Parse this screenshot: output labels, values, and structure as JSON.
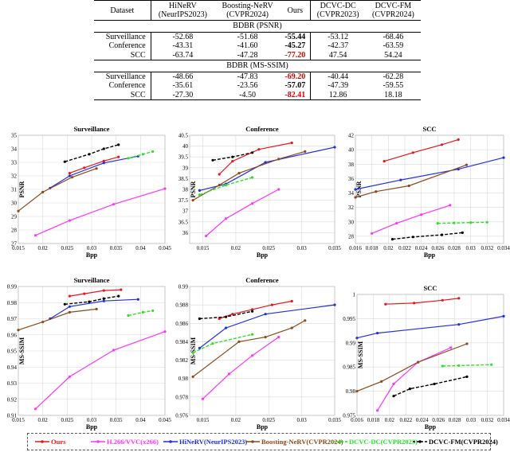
{
  "table": {
    "headers": [
      "Dataset",
      "HiNeRV\n(NeurIPS2023)",
      "Boosting-NeRV\n(CVPR2024)",
      "Ours",
      "DCVC-DC\n(CVPR2023)",
      "DCVC-FM\n(CVPR2024)"
    ],
    "sections": [
      {
        "title": "BDBR (PSNR)",
        "rows": [
          {
            "dataset": "Surveillance",
            "values": [
              "-52.68",
              "-51.68",
              "-55.44",
              "-53.12",
              "-68.46"
            ],
            "ours_style": "bold"
          },
          {
            "dataset": "Conference",
            "values": [
              "-43.31",
              "-41.60",
              "-45.27",
              "-42.37",
              "-63.59"
            ],
            "ours_style": "bold"
          },
          {
            "dataset": "SCC",
            "values": [
              "-63.74",
              "-47.28",
              "-77.20",
              "47.54",
              "54.24"
            ],
            "ours_style": "best"
          }
        ]
      },
      {
        "title": "BDBR (MS-SSIM)",
        "rows": [
          {
            "dataset": "Surveillance",
            "values": [
              "-48.66",
              "-47.83",
              "-69.20",
              "-40.44",
              "-62.28"
            ],
            "ours_style": "best"
          },
          {
            "dataset": "Conference",
            "values": [
              "-35.61",
              "-23.56",
              "-57.07",
              "-47.39",
              "-59.55"
            ],
            "ours_style": "bold"
          },
          {
            "dataset": "SCC",
            "values": [
              "-27.30",
              "-4.50",
              "-82.41",
              "12.86",
              "18.18"
            ],
            "ours_style": "best"
          }
        ]
      }
    ]
  },
  "legend": [
    {
      "name": "Ours",
      "color": "#e8161c",
      "dash": "solid",
      "marker": "dot"
    },
    {
      "name": "H.266/VVC(x266)",
      "color": "#ff33ff",
      "dash": "solid",
      "marker": "dot"
    },
    {
      "name": "HiNeRV(NeurIPS2023)",
      "color": "#1f2fe0",
      "dash": "solid",
      "marker": "dot"
    },
    {
      "name": "Boosting-NeRV(CVPR2024)",
      "color": "#8a4a1c",
      "dash": "solid",
      "marker": "dot"
    },
    {
      "name": "DCVC-DC(CVPR2023)",
      "color": "#2ee02e",
      "dash": "dashed",
      "marker": "dot"
    },
    {
      "name": "DCVC-FM(CVPR2024)",
      "color": "#000000",
      "dash": "dashed",
      "marker": "dot"
    }
  ],
  "chart_data": [
    {
      "type": "line",
      "title": "Surveillance",
      "xlabel": "Bpp",
      "ylabel": "PSNR",
      "xlim": [
        0.015,
        0.045
      ],
      "ylim": [
        27,
        35
      ],
      "xticks": [
        "0.015",
        "0.02",
        "0.025",
        "0.03",
        "0.035",
        "0.04",
        "0.045"
      ],
      "yticks": [
        "27",
        "28",
        "29",
        "30",
        "31",
        "32",
        "33",
        "34",
        "35"
      ],
      "series": [
        {
          "name": "Ours",
          "x": [
            0.0255,
            0.0285,
            0.0325,
            0.0355
          ],
          "y": [
            32.2,
            32.6,
            33.1,
            33.4
          ]
        },
        {
          "name": "H.266/VVC(x266)",
          "x": [
            0.0185,
            0.0255,
            0.0345,
            0.045
          ],
          "y": [
            27.6,
            28.7,
            29.9,
            31.05
          ]
        },
        {
          "name": "HiNeRV(NeurIPS2023)",
          "x": [
            0.0215,
            0.0255,
            0.0325,
            0.0395
          ],
          "y": [
            31.1,
            32.0,
            32.95,
            33.45
          ]
        },
        {
          "name": "Boosting-NeRV(CVPR2024)",
          "x": [
            0.015,
            0.02,
            0.026,
            0.031
          ],
          "y": [
            29.4,
            30.8,
            31.9,
            32.55
          ]
        },
        {
          "name": "DCVC-DC(CVPR2023)",
          "x": [
            0.0375,
            0.0405,
            0.0425
          ],
          "y": [
            33.3,
            33.6,
            33.8
          ]
        },
        {
          "name": "DCVC-FM(CVPR2024)",
          "x": [
            0.0245,
            0.0295,
            0.0325,
            0.0355
          ],
          "y": [
            33.05,
            33.6,
            34.0,
            34.3
          ]
        }
      ]
    },
    {
      "type": "line",
      "title": "Conference",
      "xlabel": "Bpp",
      "ylabel": "PSNR",
      "xlim": [
        0.013,
        0.035
      ],
      "ylim": [
        35.5,
        40.5
      ],
      "xticks": [
        "0.015",
        "0.02",
        "0.025",
        "0.03",
        "0.035"
      ],
      "yticks": [
        "36",
        "36.5",
        "37",
        "37.5",
        "38",
        "38.5",
        "39",
        "39.5",
        "40",
        "40.5"
      ],
      "series": [
        {
          "name": "Ours",
          "x": [
            0.0175,
            0.0195,
            0.0235,
            0.0285
          ],
          "y": [
            38.7,
            39.3,
            39.85,
            40.15
          ]
        },
        {
          "name": "H.266/VVC(x266)",
          "x": [
            0.0155,
            0.0185,
            0.0225,
            0.0265
          ],
          "y": [
            35.85,
            36.65,
            37.35,
            38.0
          ]
        },
        {
          "name": "HiNeRV(NeurIPS2023)",
          "x": [
            0.0145,
            0.0185,
            0.0245,
            0.035
          ],
          "y": [
            37.95,
            38.25,
            39.25,
            39.95
          ]
        },
        {
          "name": "Boosting-NeRV(CVPR2024)",
          "x": [
            0.0135,
            0.0175,
            0.0205,
            0.0265,
            0.0305
          ],
          "y": [
            37.5,
            38.2,
            38.75,
            39.4,
            39.75
          ]
        },
        {
          "name": "DCVC-DC(CVPR2023)",
          "x": [
            0.0145,
            0.0185,
            0.0225
          ],
          "y": [
            37.75,
            38.2,
            38.55
          ]
        },
        {
          "name": "DCVC-FM(CVPR2024)",
          "x": [
            0.0165,
            0.0195,
            0.0225
          ],
          "y": [
            39.35,
            39.5,
            39.7
          ]
        }
      ]
    },
    {
      "type": "line",
      "title": "SCC",
      "xlabel": "Bpp",
      "ylabel": "PSNR",
      "xlim": [
        0.016,
        0.034
      ],
      "ylim": [
        27,
        42
      ],
      "xticks": [
        "0.016",
        "0.018",
        "0.02",
        "0.022",
        "0.024",
        "0.026",
        "0.028",
        "0.03",
        "0.032",
        "0.034"
      ],
      "yticks": [
        "28",
        "30",
        "32",
        "34",
        "36",
        "38",
        "40",
        "42"
      ],
      "series": [
        {
          "name": "Ours",
          "x": [
            0.0195,
            0.023,
            0.0265,
            0.0285
          ],
          "y": [
            38.4,
            39.6,
            40.7,
            41.4
          ]
        },
        {
          "name": "H.266/VVC(x266)",
          "x": [
            0.018,
            0.021,
            0.024,
            0.0275
          ],
          "y": [
            28.4,
            29.8,
            31.0,
            32.3
          ]
        },
        {
          "name": "HiNeRV(NeurIPS2023)",
          "x": [
            0.016,
            0.0215,
            0.0285,
            0.034
          ],
          "y": [
            34.5,
            35.8,
            37.3,
            38.9
          ]
        },
        {
          "name": "Boosting-NeRV(CVPR2024)",
          "x": [
            0.016,
            0.0185,
            0.0225,
            0.0295
          ],
          "y": [
            33.4,
            34.2,
            35.0,
            37.9
          ]
        },
        {
          "name": "DCVC-DC(CVPR2023)",
          "x": [
            0.026,
            0.028,
            0.03,
            0.032
          ],
          "y": [
            29.8,
            29.85,
            29.9,
            29.95
          ]
        },
        {
          "name": "DCVC-FM(CVPR2024)",
          "x": [
            0.0205,
            0.023,
            0.0265,
            0.029
          ],
          "y": [
            27.6,
            27.9,
            28.2,
            28.5
          ]
        }
      ]
    },
    {
      "type": "line",
      "title": "Surveillance",
      "xlabel": "Bpp",
      "ylabel": "MS-SSIM",
      "xlim": [
        0.015,
        0.045
      ],
      "ylim": [
        0.91,
        0.99
      ],
      "xticks": [
        "0.015",
        "0.02",
        "0.025",
        "0.03",
        "0.035",
        "0.04",
        "0.045"
      ],
      "yticks": [
        "0.91",
        "0.92",
        "0.93",
        "0.94",
        "0.95",
        "0.96",
        "0.97",
        "0.98",
        "0.99"
      ],
      "series": [
        {
          "name": "Ours",
          "x": [
            0.0255,
            0.0285,
            0.0325,
            0.036
          ],
          "y": [
            0.984,
            0.9855,
            0.9875,
            0.988
          ]
        },
        {
          "name": "H.266/VVC(x266)",
          "x": [
            0.0185,
            0.0255,
            0.0345,
            0.045
          ],
          "y": [
            0.914,
            0.934,
            0.9505,
            0.962
          ]
        },
        {
          "name": "HiNeRV(NeurIPS2023)",
          "x": [
            0.0215,
            0.0255,
            0.0325,
            0.0395
          ],
          "y": [
            0.97,
            0.9775,
            0.981,
            0.982
          ]
        },
        {
          "name": "Boosting-NeRV(CVPR2024)",
          "x": [
            0.015,
            0.02,
            0.0255,
            0.031
          ],
          "y": [
            0.963,
            0.968,
            0.974,
            0.976
          ]
        },
        {
          "name": "DCVC-DC(CVPR2023)",
          "x": [
            0.0375,
            0.0405,
            0.0425
          ],
          "y": [
            0.972,
            0.974,
            0.975
          ]
        },
        {
          "name": "DCVC-FM(CVPR2024)",
          "x": [
            0.0245,
            0.0295,
            0.0325,
            0.0355
          ],
          "y": [
            0.979,
            0.9805,
            0.9825,
            0.984
          ]
        }
      ]
    },
    {
      "type": "line",
      "title": "Conference",
      "xlabel": "Bpp",
      "ylabel": "MS-SSIM",
      "xlim": [
        0.013,
        0.035
      ],
      "ylim": [
        0.976,
        0.99
      ],
      "xticks": [
        "0.015",
        "0.02",
        "0.025",
        "0.03",
        "0.035"
      ],
      "yticks": [
        "0.976",
        "0.978",
        "0.98",
        "0.982",
        "0.984",
        "0.986",
        "0.988",
        "0.99"
      ],
      "series": [
        {
          "name": "Ours",
          "x": [
            0.0175,
            0.0195,
            0.0225,
            0.0255,
            0.0285
          ],
          "y": [
            0.9865,
            0.987,
            0.9875,
            0.988,
            0.9884
          ]
        },
        {
          "name": "H.266/VVC(x266)",
          "x": [
            0.015,
            0.019,
            0.0225,
            0.0265
          ],
          "y": [
            0.9778,
            0.9805,
            0.9825,
            0.9845
          ]
        },
        {
          "name": "HiNeRV(NeurIPS2023)",
          "x": [
            0.0145,
            0.0185,
            0.0245,
            0.035
          ],
          "y": [
            0.9833,
            0.9855,
            0.987,
            0.988
          ]
        },
        {
          "name": "Boosting-NeRV(CVPR2024)",
          "x": [
            0.0135,
            0.0205,
            0.0245,
            0.0285,
            0.0305
          ],
          "y": [
            0.9802,
            0.984,
            0.9845,
            0.9855,
            0.9863
          ]
        },
        {
          "name": "DCVC-DC(CVPR2023)",
          "x": [
            0.0135,
            0.0165,
            0.0225
          ],
          "y": [
            0.9828,
            0.9838,
            0.9848
          ]
        },
        {
          "name": "DCVC-FM(CVPR2024)",
          "x": [
            0.0145,
            0.0185,
            0.0225
          ],
          "y": [
            0.9865,
            0.9867,
            0.9873
          ]
        }
      ]
    },
    {
      "type": "line",
      "title": "SCC",
      "xlabel": "Bpp",
      "ylabel": "MS-SSIM",
      "xlim": [
        0.016,
        0.034
      ],
      "ylim": [
        0.975,
        1.0
      ],
      "xticks": [
        "0.016",
        "0.018",
        "0.02",
        "0.022",
        "0.024",
        "0.026",
        "0.028",
        "0.03",
        "0.032",
        "0.034"
      ],
      "yticks": [
        "0.975",
        "0.98",
        "0.985",
        "0.99",
        "0.995",
        "1"
      ],
      "series": [
        {
          "name": "Ours",
          "x": [
            0.0195,
            0.023,
            0.0265,
            0.0285
          ],
          "y": [
            0.998,
            0.9982,
            0.9988,
            0.9992
          ]
        },
        {
          "name": "H.266/VVC(x266)",
          "x": [
            0.0185,
            0.0205,
            0.0235,
            0.0275
          ],
          "y": [
            0.976,
            0.9815,
            0.986,
            0.989
          ]
        },
        {
          "name": "HiNeRV(NeurIPS2023)",
          "x": [
            0.016,
            0.0185,
            0.0285,
            0.034
          ],
          "y": [
            0.991,
            0.992,
            0.9938,
            0.9955
          ]
        },
        {
          "name": "Boosting-NeRV(CVPR2024)",
          "x": [
            0.016,
            0.019,
            0.0235,
            0.0295
          ],
          "y": [
            0.98,
            0.982,
            0.986,
            0.9898
          ]
        },
        {
          "name": "DCVC-DC(CVPR2023)",
          "x": [
            0.0265,
            0.0285,
            0.0325
          ],
          "y": [
            0.9852,
            0.9853,
            0.9855
          ]
        },
        {
          "name": "DCVC-FM(CVPR2024)",
          "x": [
            0.0205,
            0.0225,
            0.0255,
            0.0295
          ],
          "y": [
            0.979,
            0.9805,
            0.9815,
            0.983
          ]
        }
      ]
    }
  ]
}
